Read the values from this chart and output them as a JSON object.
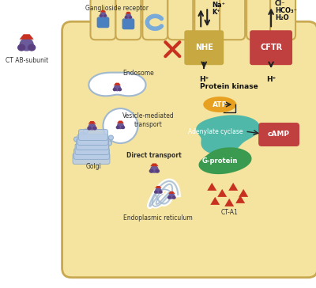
{
  "white_bg": "#FFFFFF",
  "cell_color": "#F5E4A0",
  "cell_border_color": "#C8A850",
  "label_ct": "CT AB-subunit",
  "label_ganglioside": "Ganglioside receptor",
  "label_endosome": "Endosome",
  "label_vesicle": "Vesicle-mediated\ntransport",
  "label_direct": "Direct transport",
  "label_golgi": "Golgi",
  "label_er": "Endoplasmic reticulum",
  "label_nhe": "NHE",
  "label_cftr": "CFTR",
  "label_pk": "Protein kinase",
  "label_atp": "ATP",
  "label_adenylate": "Adenylate cyclase",
  "label_gprotein": "G-protein",
  "label_camp": "cAMP",
  "label_cta1": "CT-A1",
  "label_na": "Na⁺",
  "label_k": "K⁺",
  "label_cl": "Cl⁻",
  "label_hco3": "HCO₃⁻",
  "label_h2o": "H₂O",
  "label_h1": "H⁺",
  "label_h2": "H⁺",
  "purple_dark": "#5A4080",
  "purple_body": "#6B5A9A",
  "red_dark": "#C83020",
  "blue_receptor": "#4A80C0",
  "blue_light": "#7AAAD8",
  "nhe_color": "#C8A840",
  "cftr_color": "#C04040",
  "atp_color": "#E8A020",
  "adenylate_color": "#50B8A8",
  "gprotein_color": "#3A9A50",
  "camp_color": "#C04040",
  "arrow_color": "#222222",
  "golgi_color": "#B8CCE8",
  "er_color": "#D0D8F0",
  "endosome_border": "#A0B8D0",
  "vesicle_border": "#A0B8D0",
  "text_color": "#333333"
}
